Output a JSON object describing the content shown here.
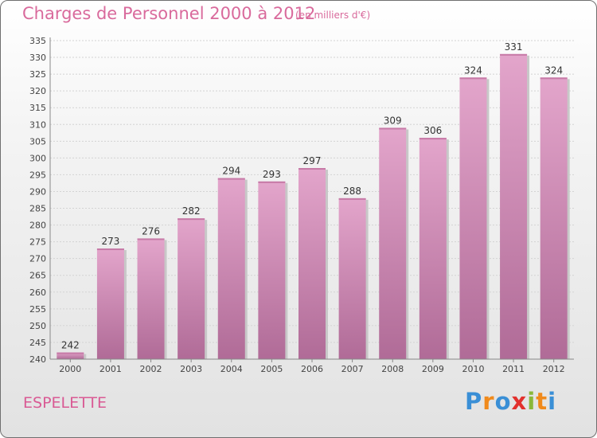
{
  "chart_data": {
    "type": "bar",
    "title": "Charges de Personnel 2000 à 2012",
    "subtitle": "(en milliers d'€)",
    "categories": [
      "2000",
      "2001",
      "2002",
      "2003",
      "2004",
      "2005",
      "2006",
      "2007",
      "2008",
      "2009",
      "2010",
      "2011",
      "2012"
    ],
    "values": [
      242,
      273,
      276,
      282,
      294,
      293,
      297,
      288,
      309,
      306,
      324,
      331,
      324
    ],
    "data_labels": [
      "242",
      "273",
      "276",
      "282",
      "294",
      "293",
      "297",
      "288",
      "309",
      "306",
      "324",
      "331",
      "324"
    ],
    "ylim": [
      240,
      335
    ],
    "yticks": [
      240,
      245,
      250,
      255,
      260,
      265,
      270,
      275,
      280,
      285,
      290,
      295,
      300,
      305,
      310,
      315,
      320,
      325,
      330,
      335
    ],
    "ytick_labels": [
      "240",
      "245",
      "250",
      "255",
      "260",
      "265",
      "270",
      "275",
      "280",
      "285",
      "290",
      "295",
      "300",
      "305",
      "310",
      "315",
      "320",
      "325",
      "330",
      "335"
    ],
    "grid": true,
    "xlabel": "",
    "ylabel": "",
    "bar_color": "#d98ab5"
  },
  "location": "ESPELETTE",
  "logo": {
    "letters": [
      "P",
      "r",
      "o",
      "x",
      "i",
      "t",
      "i"
    ],
    "colors": [
      "#3a8fd6",
      "#f08a1c",
      "#3a8fd6",
      "#e2312d",
      "#8ab83a",
      "#f08a1c",
      "#3a8fd6"
    ]
  }
}
